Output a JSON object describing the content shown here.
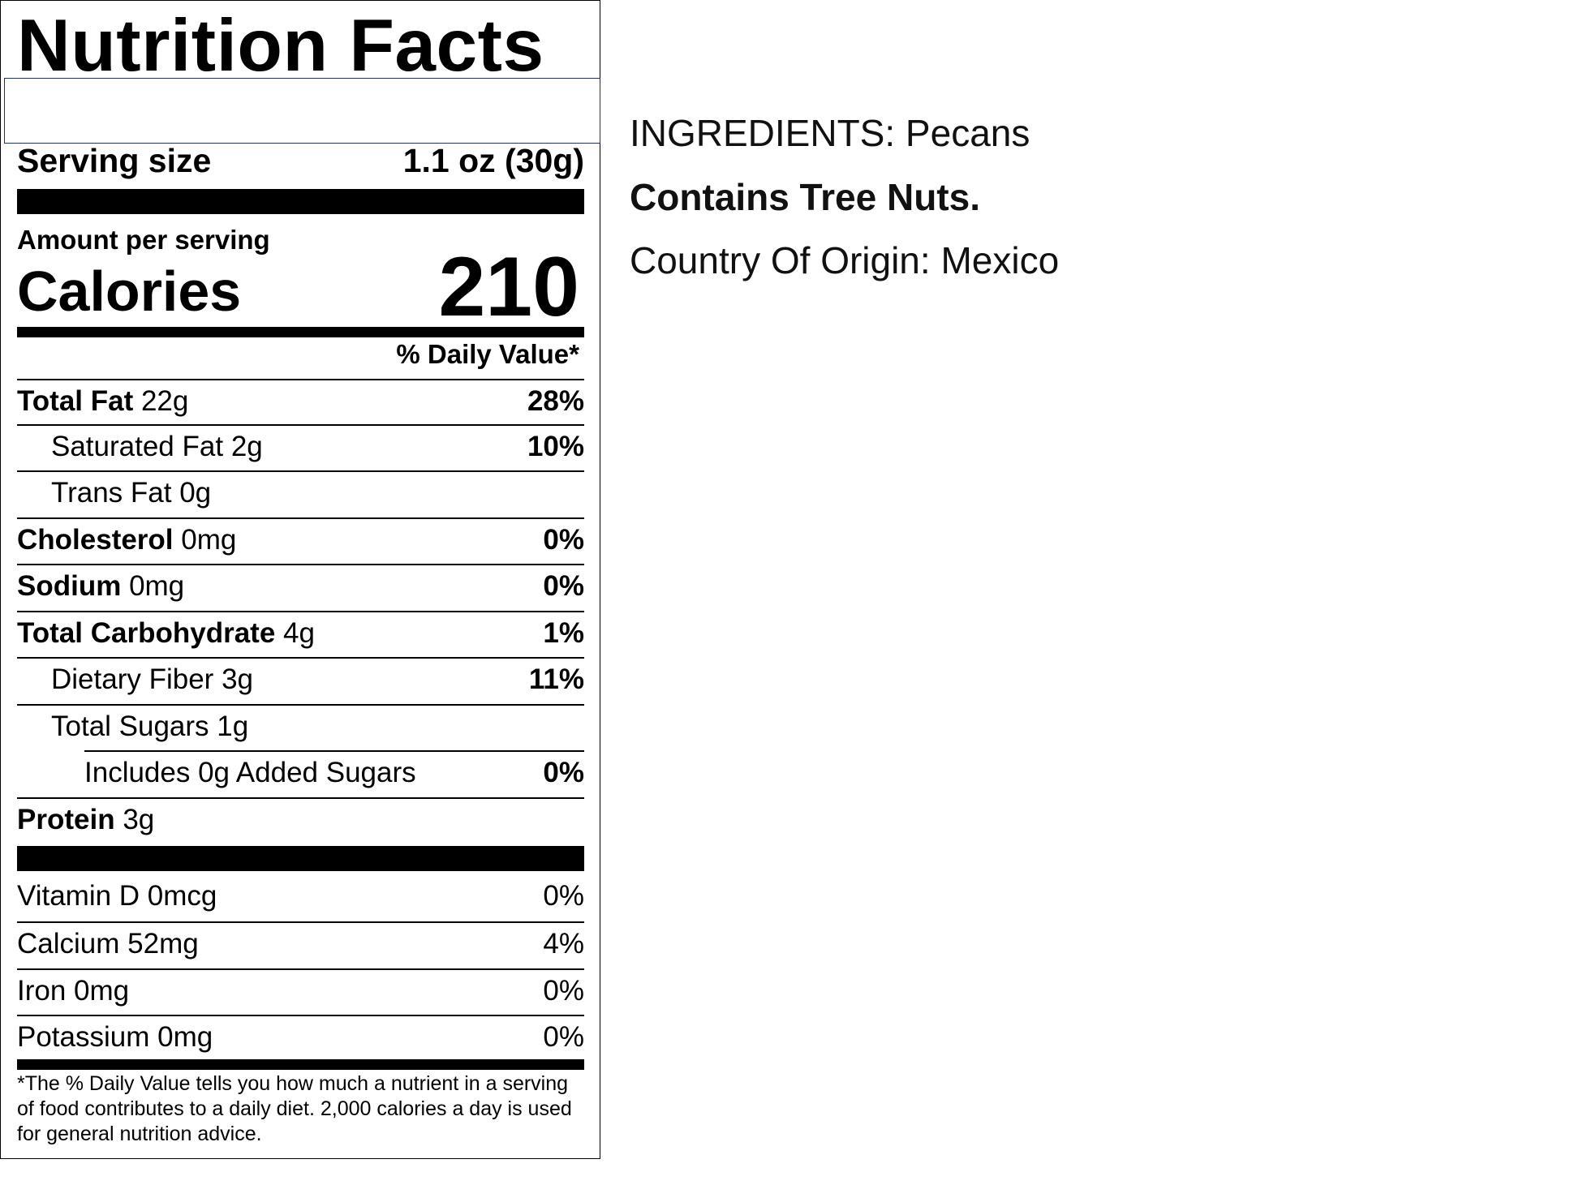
{
  "label": {
    "title": "Nutrition Facts",
    "serving_size_label": "Serving size",
    "serving_size_value": "1.1 oz (30g)",
    "amount_per_serving": "Amount per serving",
    "calories_label": "Calories",
    "calories_value": "210",
    "dv_header": "% Daily Value*",
    "nutrients": [
      {
        "name": "Total Fat",
        "amount": "22g",
        "dv": "28%"
      },
      {
        "name": "Saturated Fat",
        "amount": "2g",
        "dv": "10%"
      },
      {
        "name": "Trans Fat",
        "amount": "0g",
        "dv": ""
      },
      {
        "name": "Cholesterol",
        "amount": "0mg",
        "dv": "0%"
      },
      {
        "name": "Sodium",
        "amount": "0mg",
        "dv": "0%"
      },
      {
        "name": "Total Carbohydrate",
        "amount": "4g",
        "dv": "1%"
      },
      {
        "name": "Dietary Fiber",
        "amount": "3g",
        "dv": "11%"
      },
      {
        "name": "Total Sugars",
        "amount": "1g",
        "dv": ""
      },
      {
        "name": "Includes 0g Added Sugars",
        "amount": "",
        "dv": "0%"
      },
      {
        "name": "Protein",
        "amount": "3g",
        "dv": ""
      }
    ],
    "vitamins": [
      {
        "name": "Vitamin D 0mcg",
        "dv": "0%"
      },
      {
        "name": "Calcium 52mg",
        "dv": "4%"
      },
      {
        "name": "Iron 0mg",
        "dv": "0%"
      },
      {
        "name": "Potassium 0mg",
        "dv": "0%"
      }
    ],
    "footnote": "*The % Daily Value tells you how much a nutrient in a serving of food contributes to a daily diet. 2,000 calories a day is used for general nutrition advice."
  },
  "side": {
    "ingredients": "INGREDIENTS: Pecans",
    "allergen": "Contains Tree Nuts.",
    "origin": "Country Of Origin: Mexico"
  }
}
